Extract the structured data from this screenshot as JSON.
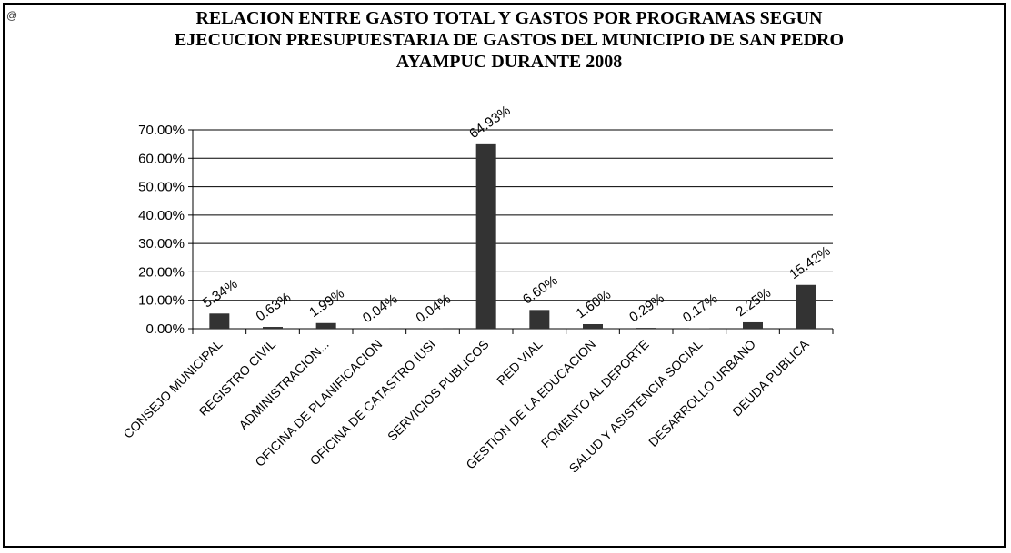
{
  "corner_mark": "@",
  "chart_data": {
    "type": "bar",
    "title_lines": [
      "RELACION ENTRE GASTO TOTAL Y GASTOS POR PROGRAMAS SEGUN",
      "EJECUCION PRESUPUESTARIA DE GASTOS  DEL MUNICIPIO DE SAN PEDRO",
      "AYAMPUC DURANTE 2008"
    ],
    "categories": [
      "CONSEJO MUNICIPAL",
      "REGISTRO CIVIL",
      "ADMINISTRACION...",
      "OFICINA DE PLANIFICACION",
      "OFICINA DE CATASTRO IUSI",
      "SERVICIOS PUBLICOS",
      "RED VIAL",
      "GESTION DE LA EDUCACION",
      "FOMENTO AL DEPORTE",
      "SALUD Y ASISTENCIA  SOCIAL",
      "DESARROLLO URBANO",
      "DEUDA PUBLICA"
    ],
    "values": [
      5.34,
      0.63,
      1.99,
      0.04,
      0.04,
      64.93,
      6.6,
      1.6,
      0.29,
      0.17,
      2.25,
      15.42
    ],
    "data_labels": [
      "5.34%",
      "0.63%",
      "1.99%",
      "0.04%",
      "0.04%",
      "64.93%",
      "6.60%",
      "1.60%",
      "0.29%",
      "0.17%",
      "2.25%",
      "15.42%"
    ],
    "y_ticks": [
      "0.00%",
      "10.00%",
      "20.00%",
      "30.00%",
      "40.00%",
      "50.00%",
      "60.00%",
      "70.00%"
    ],
    "ylim": [
      0,
      70
    ],
    "grid": true,
    "legend": "none",
    "bar_color": "#333333"
  }
}
